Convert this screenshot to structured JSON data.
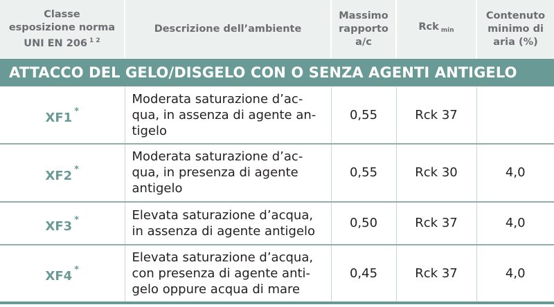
{
  "header": {
    "col1_line1": "Classe",
    "col1_line2": "esposizione norma",
    "col1_line3": "UNI EN 206",
    "col1_sup": "1 2",
    "col2": "Descrizione dell’ambiente",
    "col3_line1": "Massimo",
    "col3_line2": "rapporto",
    "col3_line3": "a/c",
    "col4": "Rck",
    "col4_sub": "min",
    "col5_line1": "Contenuto",
    "col5_line2": "minimo di",
    "col5_line3": "aria (%)"
  },
  "section_title": "ATTACCO DEL GELO/DISGELO CON O SENZA AGENTI ANTIGELO",
  "rows": [
    {
      "class": "XF1",
      "star": "*",
      "desc_lines": [
        "Moderata saturazione d’ac-",
        "qua, in assenza di agente an-",
        "tigelo"
      ],
      "ratio": "0,55",
      "rck": "Rck 37",
      "air": ""
    },
    {
      "class": "XF2",
      "star": "*",
      "desc_lines": [
        "Moderata saturazione d’ac-",
        "qua, in presenza di agente",
        "antigelo"
      ],
      "ratio": "0,55",
      "rck": "Rck 30",
      "air": "4,0"
    },
    {
      "class": "XF3",
      "star": "*",
      "desc_lines": [
        "Elevata saturazione d’acqua,",
        "in assenza di agente antigelo"
      ],
      "ratio": "0,50",
      "rck": "Rck 37",
      "air": "4,0"
    },
    {
      "class": "XF4",
      "star": "*",
      "desc_lines": [
        "Elevata saturazione d’acqua,",
        "con presenza di agente anti-",
        "gelo oppure acqua di mare"
      ],
      "ratio": "0,45",
      "rck": "Rck 37",
      "air": "4,0"
    }
  ],
  "colors": {
    "accent": "#6a9a95",
    "header_bg": "#ecf0ef",
    "header_text": "#6d6e71"
  }
}
